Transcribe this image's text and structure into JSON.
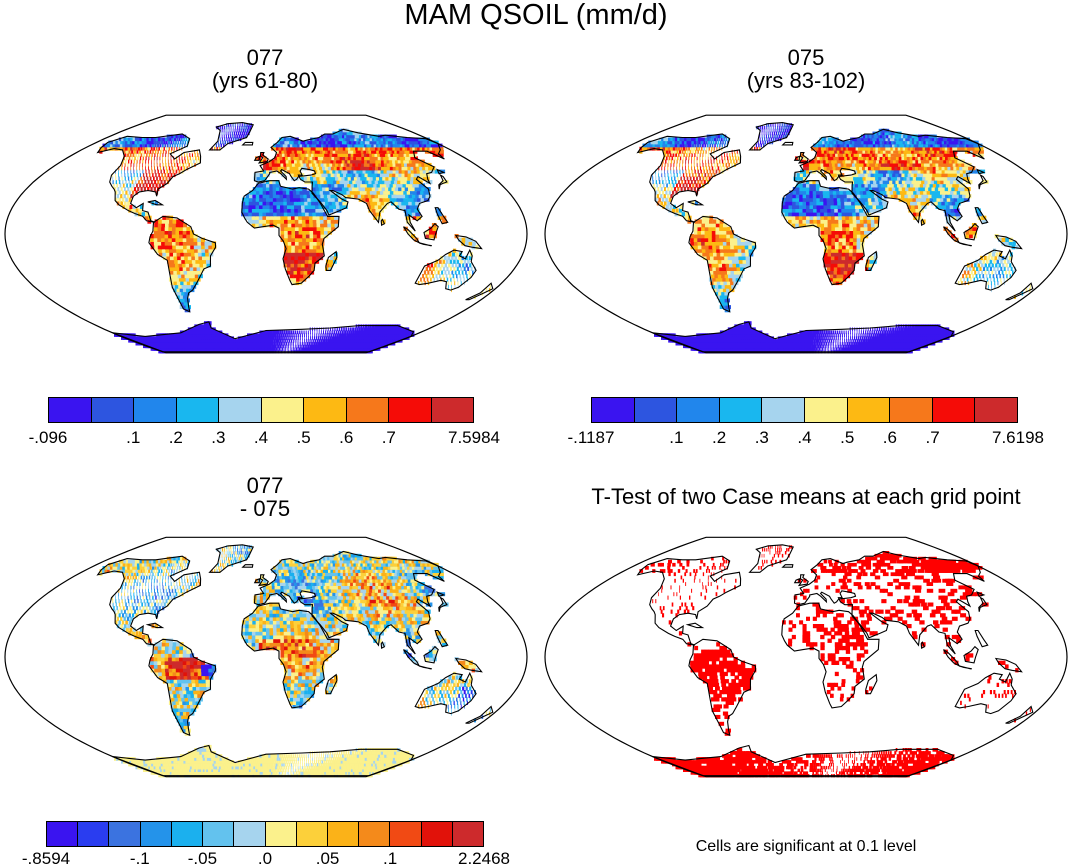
{
  "figure": {
    "title": "MAM QSOIL (mm/d)"
  },
  "panels": [
    {
      "id": "p1",
      "title_line1": "077",
      "title_line2": "(yrs 61-80)",
      "field": "climatology",
      "colors": [
        "#3a14f0",
        "#2d55e0",
        "#2186ec",
        "#19b7ef",
        "#a6d4ee",
        "#fbf18c",
        "#fdb913",
        "#f6781b",
        "#f50c07",
        "#cd2a2c"
      ],
      "labels": [
        "-.096",
        ".1",
        ".2",
        ".3",
        ".4",
        ".5",
        ".6",
        ".7",
        "7.5984"
      ]
    },
    {
      "id": "p2",
      "title_line1": "075",
      "title_line2": "(yrs 83-102)",
      "field": "climatology",
      "colors": [
        "#3a14f0",
        "#2d55e0",
        "#2186ec",
        "#19b7ef",
        "#a6d4ee",
        "#fbf18c",
        "#fdb913",
        "#f6781b",
        "#f50c07",
        "#cd2a2c"
      ],
      "labels": [
        "-.1187",
        ".1",
        ".2",
        ".3",
        ".4",
        ".5",
        ".6",
        ".7",
        "7.6198"
      ]
    },
    {
      "id": "p3",
      "title_line1": "077",
      "title_line2": "- 075",
      "field": "difference",
      "colors": [
        "#3a14f0",
        "#2a3df0",
        "#3b73e0",
        "#2493ea",
        "#1bb0ee",
        "#63c2ee",
        "#a6d4ee",
        "#fbf18c",
        "#fcd03a",
        "#fbb218",
        "#f48a1b",
        "#f14a14",
        "#e1120a",
        "#cd2a2c"
      ],
      "labels": [
        "-.8594",
        "-.1",
        "-.05",
        ".0",
        ".05",
        ".1",
        "2.2468"
      ]
    },
    {
      "id": "p4",
      "title_line1": "T-Test of two Case means at each grid point",
      "title_line2": "",
      "field": "significance",
      "colors": [
        "#ff0000"
      ],
      "note": "Cells are significant at 0.1 level"
    }
  ]
}
